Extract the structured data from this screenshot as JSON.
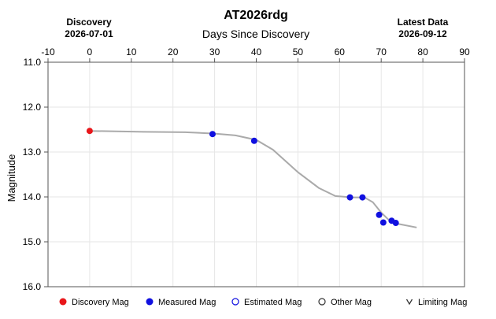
{
  "chart_data": {
    "type": "line",
    "title": "AT2026rdg",
    "xlabel": "Days Since Discovery",
    "ylabel": "Magnitude",
    "xlim": [
      -10,
      90
    ],
    "ylim": [
      11.0,
      16.0
    ],
    "y_inverted": true,
    "grid": true,
    "x_ticks": [
      -10,
      0,
      10,
      20,
      30,
      40,
      50,
      60,
      70,
      80,
      90
    ],
    "y_ticks": [
      "11.0",
      "12.0",
      "13.0",
      "14.0",
      "15.0",
      "16.0"
    ],
    "header_left": {
      "label": "Discovery",
      "date": "2026-07-01"
    },
    "header_right": {
      "label": "Latest Data",
      "date": "2026-09-12"
    },
    "curve": {
      "color": "#aaaaaa",
      "x": [
        0,
        13,
        23,
        30,
        35,
        40,
        44,
        50,
        55,
        59,
        63,
        66,
        68,
        70,
        72,
        74,
        78.5
      ],
      "y": [
        12.53,
        12.55,
        12.56,
        12.59,
        12.63,
        12.73,
        12.95,
        13.45,
        13.8,
        13.98,
        14.01,
        14.01,
        14.12,
        14.35,
        14.53,
        14.6,
        14.68
      ]
    },
    "series": [
      {
        "name": "Discovery Mag",
        "color": "#e8161a",
        "points": [
          {
            "x": 0,
            "y": 12.53
          }
        ]
      },
      {
        "name": "Measured Mag",
        "color": "#1010e0",
        "points": [
          {
            "x": 29.5,
            "y": 12.6
          },
          {
            "x": 39.5,
            "y": 12.75
          },
          {
            "x": 62.5,
            "y": 14.01
          },
          {
            "x": 65.5,
            "y": 14.01
          },
          {
            "x": 69.5,
            "y": 14.4
          },
          {
            "x": 70.5,
            "y": 14.57
          },
          {
            "x": 72.5,
            "y": 14.53
          },
          {
            "x": 73.5,
            "y": 14.58
          }
        ]
      }
    ],
    "legend": {
      "position": "bottom",
      "items": [
        {
          "label": "Discovery Mag",
          "marker": "filled-circle",
          "color": "#e8161a"
        },
        {
          "label": "Measured Mag",
          "marker": "filled-circle",
          "color": "#1010e0"
        },
        {
          "label": "Estimated Mag",
          "marker": "open-circle",
          "color": "#1010e0"
        },
        {
          "label": "Other Mag",
          "marker": "open-circle",
          "color": "#333333"
        },
        {
          "label": "Limiting Mag",
          "marker": "v",
          "color": "#333333"
        }
      ]
    }
  }
}
